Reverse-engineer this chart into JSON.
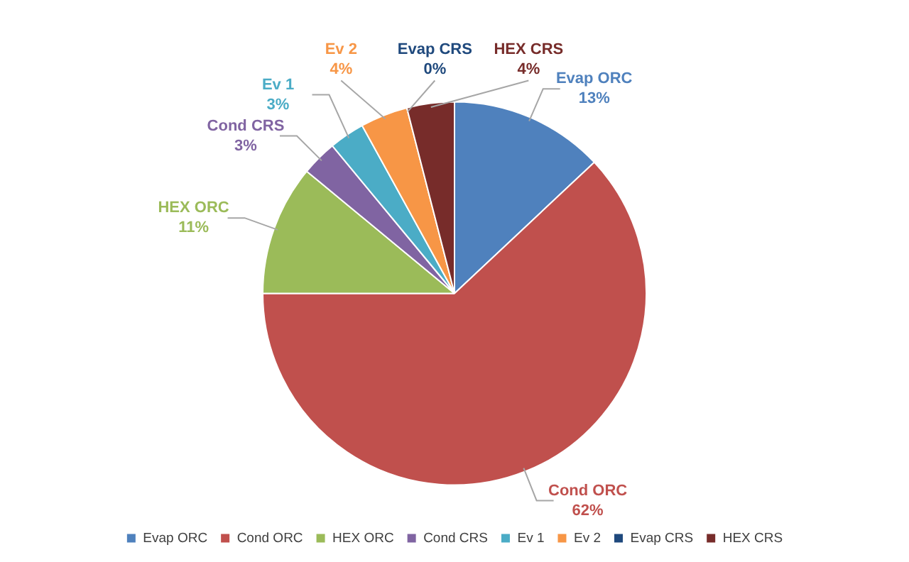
{
  "chart_data": {
    "type": "pie",
    "categories": [
      "Evap ORC",
      "Cond ORC",
      "HEX ORC",
      "Cond CRS",
      "Ev 1",
      "Ev 2",
      "Evap CRS",
      "HEX CRS"
    ],
    "values": [
      13,
      62,
      11,
      3,
      3,
      4,
      0,
      4
    ],
    "value_labels": [
      "13%",
      "62%",
      "11%",
      "3%",
      "3%",
      "4%",
      "0%",
      "4%"
    ],
    "colors": [
      "#4f81bd",
      "#c0504d",
      "#9bbb59",
      "#8064a2",
      "#4bacc6",
      "#f79646",
      "#1f497d",
      "#772c2a"
    ],
    "legend": "bottom"
  }
}
